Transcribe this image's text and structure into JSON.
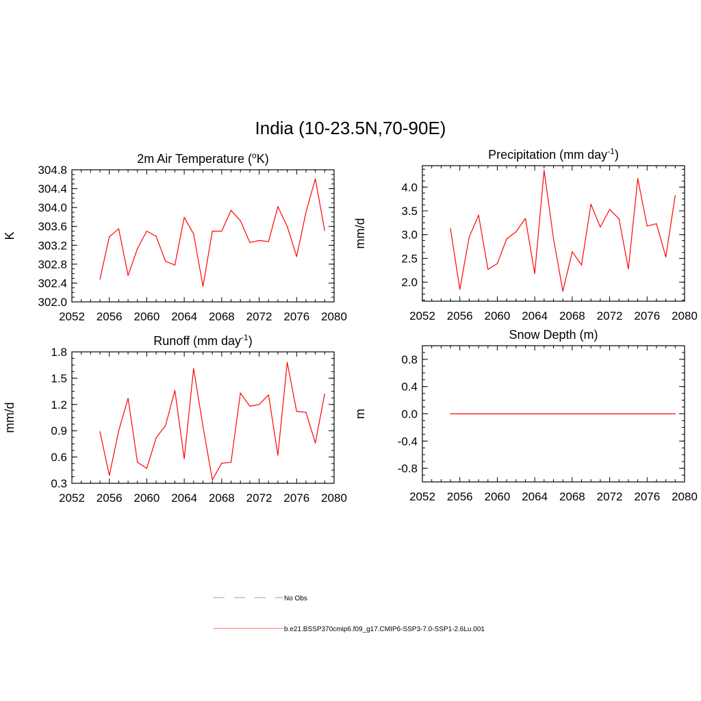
{
  "title": "India (10-23.5N,70-90E)",
  "legend": [
    {
      "label": "No Obs",
      "style": "dashed",
      "color": "#aaaadd"
    },
    {
      "label": "b.e21.BSSP370cmip6.f09_g17.CMIP6-SSP3-7.0-SSP1-2.6Lu.001",
      "style": "solid",
      "color": "#ff8888"
    }
  ],
  "chart_data": [
    {
      "type": "line",
      "title": "2m Air Temperature (oK)",
      "title_parts": {
        "pre": "2m Air Temperature (",
        "sup": "o",
        "post": "K)"
      },
      "ylabel": "K",
      "xlim": [
        2052,
        2080
      ],
      "ylim": [
        302.0,
        304.8
      ],
      "xticks": [
        2052,
        2056,
        2060,
        2064,
        2068,
        2072,
        2076,
        2080
      ],
      "yticks": [
        "302.0",
        "302.4",
        "302.8",
        "303.2",
        "303.6",
        "304.0",
        "304.4",
        "304.8"
      ],
      "grid": false,
      "series": [
        {
          "color": "#ff0000",
          "x": [
            2055,
            2056,
            2057,
            2058,
            2059,
            2060,
            2061,
            2062,
            2063,
            2064,
            2065,
            2066,
            2067,
            2068,
            2069,
            2070,
            2071,
            2072,
            2073,
            2074,
            2075,
            2076,
            2077,
            2078,
            2079
          ],
          "y": [
            302.48,
            303.38,
            303.55,
            302.56,
            303.13,
            303.5,
            303.39,
            302.86,
            302.78,
            303.79,
            303.44,
            302.33,
            303.5,
            303.5,
            303.94,
            303.72,
            303.26,
            303.3,
            303.28,
            304.02,
            303.6,
            302.96,
            303.9,
            304.61,
            303.51
          ]
        }
      ]
    },
    {
      "type": "line",
      "title": "Precipitation (mm day-1)",
      "title_parts": {
        "pre": "Precipitation (mm day",
        "sup": "-1",
        "post": ")"
      },
      "ylabel": "mm/d",
      "xlim": [
        2052,
        2080
      ],
      "ylim": [
        1.6,
        4.45
      ],
      "xticks": [
        2052,
        2056,
        2060,
        2064,
        2068,
        2072,
        2076,
        2080
      ],
      "yticks": [
        "2.0",
        "2.5",
        "3.0",
        "3.5",
        "4.0"
      ],
      "grid": false,
      "series": [
        {
          "color": "#ff0000",
          "x": [
            2055,
            2056,
            2057,
            2058,
            2059,
            2060,
            2061,
            2062,
            2063,
            2064,
            2065,
            2066,
            2067,
            2068,
            2069,
            2070,
            2071,
            2072,
            2073,
            2074,
            2075,
            2076,
            2077,
            2078,
            2079
          ],
          "y": [
            3.13,
            1.85,
            2.95,
            3.41,
            2.27,
            2.39,
            2.91,
            3.06,
            3.34,
            2.18,
            4.35,
            2.92,
            1.81,
            2.64,
            2.36,
            3.64,
            3.16,
            3.53,
            3.33,
            2.28,
            4.18,
            3.18,
            3.23,
            2.53,
            3.82
          ]
        }
      ]
    },
    {
      "type": "line",
      "title": "Runoff (mm day-1)",
      "title_parts": {
        "pre": "Runoff (mm day",
        "sup": "-1",
        "post": ")"
      },
      "ylabel": "mm/d",
      "xlim": [
        2052,
        2080
      ],
      "ylim": [
        0.3,
        1.8
      ],
      "xticks": [
        2052,
        2056,
        2060,
        2064,
        2068,
        2072,
        2076,
        2080
      ],
      "yticks": [
        "0.3",
        "0.6",
        "0.9",
        "1.2",
        "1.5",
        "1.8"
      ],
      "grid": false,
      "series": [
        {
          "color": "#ff0000",
          "x": [
            2055,
            2056,
            2057,
            2058,
            2059,
            2060,
            2061,
            2062,
            2063,
            2064,
            2065,
            2066,
            2067,
            2068,
            2069,
            2070,
            2071,
            2072,
            2073,
            2074,
            2075,
            2076,
            2077,
            2078,
            2079
          ],
          "y": [
            0.89,
            0.39,
            0.9,
            1.27,
            0.54,
            0.47,
            0.82,
            0.96,
            1.36,
            0.58,
            1.61,
            0.95,
            0.34,
            0.53,
            0.54,
            1.33,
            1.18,
            1.2,
            1.31,
            0.62,
            1.68,
            1.12,
            1.11,
            0.76,
            1.32
          ]
        }
      ]
    },
    {
      "type": "line",
      "title": "Snow Depth (m)",
      "title_parts": {
        "pre": "Snow Depth (m)",
        "sup": "",
        "post": ""
      },
      "ylabel": "m",
      "xlim": [
        2052,
        2080
      ],
      "ylim": [
        -1.0,
        1.0
      ],
      "xticks": [
        2052,
        2056,
        2060,
        2064,
        2068,
        2072,
        2076,
        2080
      ],
      "yticks": [
        "-0.8",
        "-0.4",
        "0.0",
        "0.4",
        "0.8"
      ],
      "grid": false,
      "series": [
        {
          "color": "#ff0000",
          "x": [
            2055,
            2056,
            2057,
            2058,
            2059,
            2060,
            2061,
            2062,
            2063,
            2064,
            2065,
            2066,
            2067,
            2068,
            2069,
            2070,
            2071,
            2072,
            2073,
            2074,
            2075,
            2076,
            2077,
            2078,
            2079
          ],
          "y": [
            0,
            0,
            0,
            0,
            0,
            0,
            0,
            0,
            0,
            0,
            0,
            0,
            0,
            0,
            0,
            0,
            0,
            0,
            0,
            0,
            0,
            0,
            0,
            0,
            0
          ]
        }
      ]
    }
  ]
}
